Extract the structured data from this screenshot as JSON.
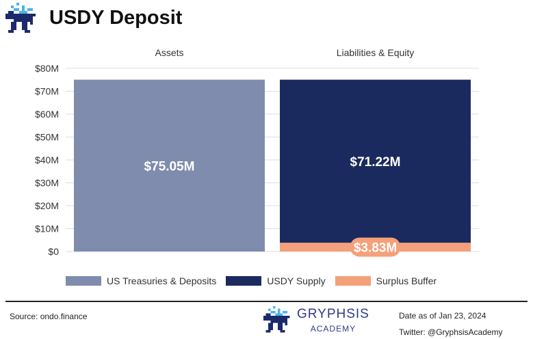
{
  "header": {
    "title": "USDY Deposit"
  },
  "colors": {
    "treasuries": "#7f8cad",
    "usdy_supply": "#1b2a5e",
    "surplus": "#f4a07a",
    "logo_light": "#4db3e8",
    "logo_dark": "#1b2a6b"
  },
  "chart_data": {
    "type": "bar",
    "stacked": true,
    "categories": [
      "Assets",
      "Liabilities & Equity"
    ],
    "series": [
      {
        "name": "US Treasuries & Deposits",
        "values": [
          75.05,
          0
        ],
        "data_labels": [
          "$75.05M",
          ""
        ],
        "color": "#7f8cad"
      },
      {
        "name": "Surplus Buffer",
        "values": [
          0,
          3.83
        ],
        "data_labels": [
          "",
          "$3.83M"
        ],
        "color": "#f4a07a"
      },
      {
        "name": "USDY Supply",
        "values": [
          0,
          71.22
        ],
        "data_labels": [
          "",
          "$71.22M"
        ],
        "color": "#1b2a5e"
      }
    ],
    "y_ticks": [
      0,
      10,
      20,
      30,
      40,
      50,
      60,
      70,
      80
    ],
    "y_tick_labels": [
      "$0",
      "$10M",
      "$20M",
      "$30M",
      "$40M",
      "$50M",
      "$60M",
      "$70M",
      "$80M"
    ],
    "ylim": [
      0,
      80
    ],
    "grid": true,
    "legend_position": "bottom"
  },
  "legend": [
    {
      "label": "US Treasuries & Deposits",
      "color": "#7f8cad"
    },
    {
      "label": "USDY Supply",
      "color": "#1b2a5e"
    },
    {
      "label": "Surplus Buffer",
      "color": "#f4a07a"
    }
  ],
  "footer": {
    "source": "Source: ondo.finance",
    "brand": "GRYPHSIS",
    "brand_sub": "ACADEMY",
    "date": "Date as of Jan 23, 2024",
    "twitter": "Twitter: @GryphsisAcademy"
  }
}
